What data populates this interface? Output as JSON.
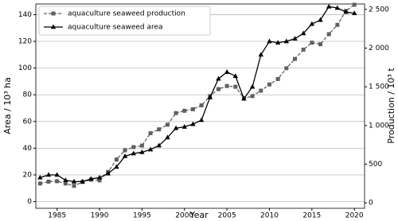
{
  "chart_data": {
    "type": "line",
    "x_label": "Year",
    "y_label": "Area / 10³ ha",
    "y2_label": "Production / 10³ t",
    "x": [
      1983,
      1984,
      1985,
      1986,
      1987,
      1988,
      1989,
      1990,
      1991,
      1992,
      1993,
      1994,
      1995,
      1996,
      1997,
      1998,
      1999,
      2000,
      2001,
      2002,
      2003,
      2004,
      2005,
      2006,
      2007,
      2008,
      2009,
      2010,
      2011,
      2012,
      2013,
      2014,
      2015,
      2016,
      2017,
      2018,
      2019,
      2020
    ],
    "series": [
      {
        "name": "aquaculture seaweed production",
        "color": "#606060",
        "axis": "y2",
        "dashed": true,
        "marker": "square",
        "values": [
          250,
          275,
          280,
          250,
          220,
          270,
          300,
          290,
          400,
          560,
          680,
          720,
          740,
          900,
          950,
          1010,
          1160,
          1190,
          1210,
          1260,
          1380,
          1470,
          1510,
          1500,
          1350,
          1380,
          1450,
          1530,
          1600,
          1740,
          1860,
          1980,
          2070,
          2050,
          2180,
          2300,
          2480,
          2560
        ]
      },
      {
        "name": "aquaculture seaweed area",
        "color": "#000000",
        "axis": "y",
        "dashed": false,
        "marker": "triangle",
        "values": [
          18,
          20,
          20,
          16,
          15,
          15,
          17,
          18,
          21,
          26,
          34,
          36,
          37,
          39,
          42,
          48,
          55,
          56,
          58,
          61,
          78,
          92,
          97,
          94,
          77,
          86,
          110,
          120,
          119,
          120,
          122,
          126,
          133,
          136,
          146,
          145,
          142,
          141
        ]
      }
    ],
    "xlim": [
      1982.5,
      2021.2
    ],
    "xticks": [
      1985,
      1990,
      1995,
      2000,
      2005,
      2010,
      2015,
      2020
    ],
    "ylim": [
      -5,
      148
    ],
    "yticks": [
      0,
      20,
      40,
      60,
      80,
      100,
      120,
      140
    ],
    "y2lim": [
      -70,
      2570
    ],
    "y2ticks": [
      0,
      500,
      {
        "value": 1000,
        "label": "1 000"
      },
      {
        "value": 1500,
        "label": "1 500"
      },
      {
        "value": 2000,
        "label": "2 000"
      },
      {
        "value": 2500,
        "label": "2 500"
      }
    ],
    "grid": true,
    "legend": "upper left"
  }
}
